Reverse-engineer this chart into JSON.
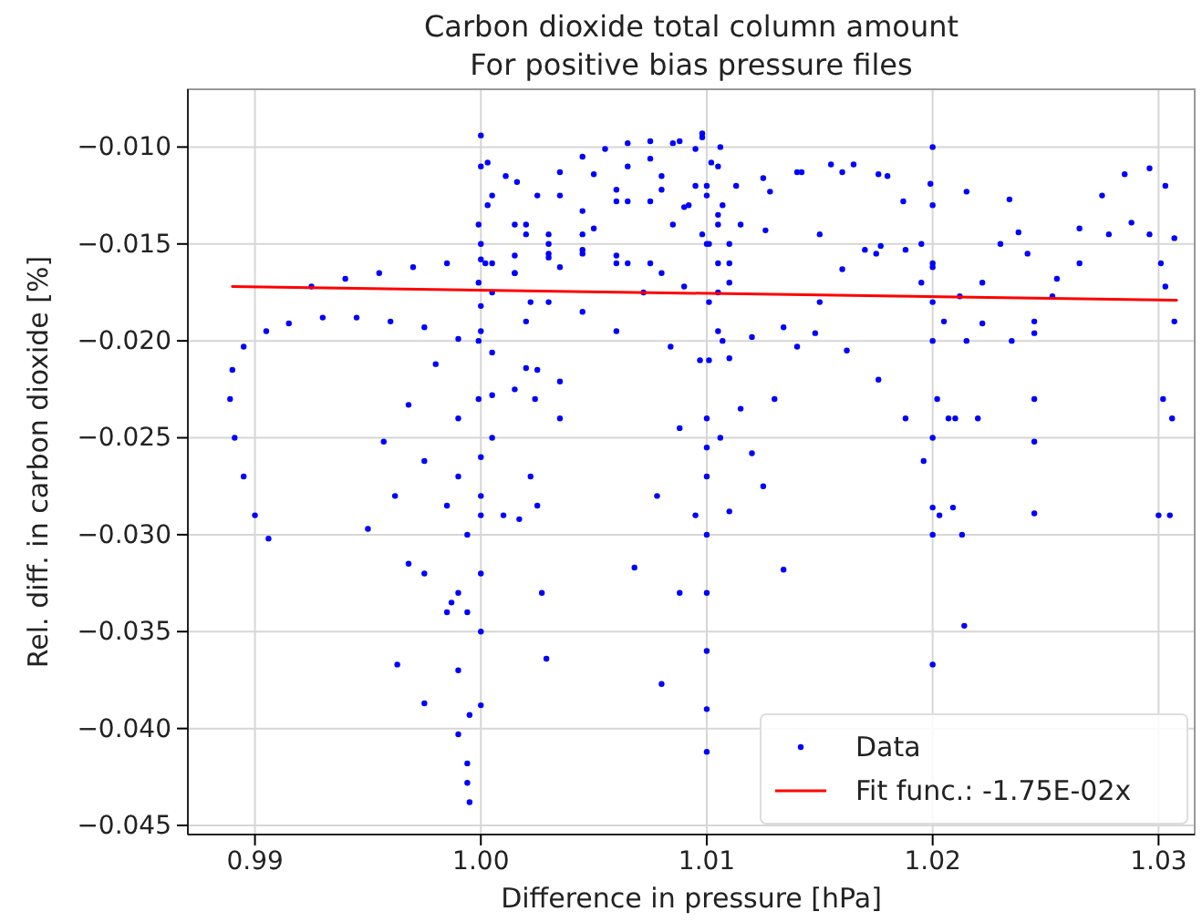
{
  "chart_data": {
    "type": "scatter",
    "title": "Carbon dioxide total column amount",
    "subtitle": "For positive bias pressure files",
    "xlabel": "Difference in pressure [hPa]",
    "ylabel": "Rel. diff. in carbon dioxide [%]",
    "xlim": [
      0.98703,
      1.0316
    ],
    "ylim": [
      -0.04547,
      -0.00702
    ],
    "xticks": [
      0.99,
      {
        "value": 1.0,
        "label": "1.00"
      },
      1.01,
      1.02,
      1.03
    ],
    "yticks": [
      {
        "value": -0.045,
        "label": "−0.045"
      },
      {
        "value": -0.04,
        "label": "−0.040"
      },
      {
        "value": -0.035,
        "label": "−0.035"
      },
      {
        "value": -0.03,
        "label": "−0.030"
      },
      {
        "value": -0.025,
        "label": "−0.025"
      },
      {
        "value": -0.02,
        "label": "−0.020"
      },
      {
        "value": -0.015,
        "label": "−0.015"
      },
      {
        "value": -0.01,
        "label": "−0.010"
      }
    ],
    "grid": true,
    "legend": "bottom right",
    "series": [
      {
        "name": "Data",
        "marker": "circle",
        "color": "#0000ff",
        "x": [
          0.9906,
          0.99,
          0.9895,
          0.9891,
          0.9889,
          0.989,
          0.9895,
          0.9905,
          0.9915,
          0.993,
          0.9945,
          0.996,
          0.9975,
          0.999,
          1.0005,
          1.002,
          1.0035,
          0.9925,
          0.994,
          0.9955,
          0.997,
          0.9985,
          1.0,
          1.0015,
          1.003,
          1.0,
          1.0,
          0.9999,
          0.9999,
          0.9999,
          0.9999,
          1.0,
          1.0,
          1.0,
          1.0,
          1.0,
          1.0003,
          1.0003,
          1.0002,
          0.9994,
          0.9994,
          0.9995,
          0.999,
          0.999,
          0.999,
          0.9994,
          0.9994,
          0.9995,
          1.0,
          1.0005,
          1.0011,
          1.0016,
          1.002,
          1.0022,
          1.0024,
          1.0025,
          1.0027,
          1.0029,
          0.9975,
          0.9985,
          1.0,
          1.0015,
          1.003,
          1.0045,
          1.006,
          1.0075,
          1.0088,
          1.0098,
          1.0105,
          1.011,
          0.9963,
          0.9975,
          0.999,
          1.0005,
          1.002,
          1.0035,
          1.005,
          1.0065,
          1.008,
          1.0095,
          1.0105,
          1.011,
          1.0005,
          1.0015,
          1.0025,
          1.0035,
          1.0045,
          1.0055,
          1.0065,
          1.0075,
          1.0085,
          1.0095,
          1.0102,
          1.0005,
          1.002,
          1.0035,
          1.005,
          1.0065,
          1.008,
          1.0092,
          1.01,
          1.0105,
          1.003,
          1.0045,
          1.006,
          1.0075,
          1.009,
          1.0105,
          1.0115,
          1.0125,
          1.0134,
          1.0,
          1.0015,
          1.003,
          1.0045,
          1.006,
          1.0072,
          1.0084,
          1.0,
          1.0015,
          1.003,
          1.0045,
          1.006,
          1.0075,
          1.009,
          1.0105,
          0.9968,
          0.9985,
          1.0005,
          1.0025,
          1.0045,
          1.0065,
          1.0085,
          1.01,
          0.9987,
          1.001,
          1.0035,
          1.006,
          1.008,
          1.0098,
          1.0068,
          1.0078,
          1.0088,
          1.0097,
          1.008,
          1.0088,
          1.0095,
          1.01,
          1.0098,
          1.01,
          1.0101,
          1.0101,
          1.0101,
          1.01,
          1.01,
          1.01,
          1.01,
          1.01,
          1.01,
          1.01,
          1.0106,
          1.0107,
          1.0107,
          1.0106,
          1.0113,
          1.0125,
          1.014,
          1.016,
          1.018,
          1.0199,
          1.0215,
          1.0234,
          1.0105,
          1.0115,
          1.0128,
          1.0142,
          1.0155,
          1.0165,
          1.0176,
          1.0187,
          1.0195,
          1.02,
          1.0202,
          1.0203,
          1.011,
          1.0126,
          1.015,
          1.0175,
          1.0195,
          1.0205,
          1.021,
          1.0213,
          1.0214,
          1.011,
          1.012,
          1.013,
          1.014,
          1.015,
          1.016,
          1.017,
          1.0177,
          1.0188,
          1.02,
          1.0212,
          1.0222,
          1.011,
          1.012,
          1.0134,
          1.0148,
          1.0162,
          1.0176,
          1.0188,
          1.0196,
          1.02,
          1.02,
          1.02,
          1.02,
          1.02,
          1.02,
          1.02,
          1.02,
          1.0207,
          1.0215,
          1.0222,
          1.023,
          1.0238,
          1.0242,
          1.0245,
          1.0245,
          1.0245,
          1.0245,
          1.0245,
          1.0255,
          1.0265,
          1.0275,
          1.0285,
          1.0296,
          1.0303,
          1.0307,
          1.0307,
          1.0306,
          1.0305,
          1.0209,
          1.022,
          1.0235,
          1.0253,
          1.0265,
          1.0278,
          1.0288,
          1.0296,
          1.0301,
          1.0303,
          1.0302,
          1.03,
          0.995,
          0.9962,
          0.9975,
          0.999,
          0.9957,
          0.9968,
          0.998,
          1.0017,
          1.0022
        ],
        "values": [
          -0.0302,
          -0.029,
          -0.027,
          -0.025,
          -0.023,
          -0.0215,
          -0.0203,
          -0.0195,
          -0.0191,
          -0.0188,
          -0.0188,
          -0.019,
          -0.0193,
          -0.0199,
          -0.0206,
          -0.0214,
          -0.0221,
          -0.0172,
          -0.0168,
          -0.0165,
          -0.0162,
          -0.016,
          -0.0158,
          -0.0156,
          -0.0155,
          -0.0094,
          -0.011,
          -0.014,
          -0.017,
          -0.02,
          -0.023,
          -0.026,
          -0.029,
          -0.032,
          -0.035,
          -0.0388,
          -0.0108,
          -0.013,
          -0.016,
          -0.03,
          -0.034,
          -0.0393,
          -0.033,
          -0.037,
          -0.0403,
          -0.0418,
          -0.0428,
          -0.0438,
          -0.015,
          -0.0125,
          -0.0115,
          -0.0118,
          -0.014,
          -0.018,
          -0.023,
          -0.0285,
          -0.033,
          -0.0364,
          -0.0387,
          -0.034,
          -0.028,
          -0.0225,
          -0.018,
          -0.0145,
          -0.0122,
          -0.0106,
          -0.0097,
          -0.0095,
          -0.011,
          -0.016,
          -0.0367,
          -0.032,
          -0.027,
          -0.0228,
          -0.019,
          -0.0162,
          -0.0142,
          -0.0128,
          -0.0122,
          -0.012,
          -0.0135,
          -0.017,
          -0.016,
          -0.014,
          -0.0125,
          -0.0113,
          -0.0105,
          -0.0101,
          -0.0098,
          -0.0097,
          -0.0098,
          -0.0101,
          -0.0108,
          -0.0175,
          -0.0145,
          -0.0125,
          -0.0114,
          -0.011,
          -0.0115,
          -0.013,
          -0.015,
          -0.0175,
          -0.015,
          -0.0153,
          -0.0156,
          -0.016,
          -0.0172,
          -0.0195,
          -0.0235,
          -0.0275,
          -0.0318,
          -0.0182,
          -0.0165,
          -0.0157,
          -0.0155,
          -0.016,
          -0.0175,
          -0.0203,
          -0.0195,
          -0.0165,
          -0.0145,
          -0.0133,
          -0.0128,
          -0.0128,
          -0.0131,
          -0.014,
          -0.0315,
          -0.0285,
          -0.025,
          -0.0215,
          -0.0185,
          -0.016,
          -0.014,
          -0.0125,
          -0.0335,
          -0.029,
          -0.024,
          -0.0195,
          -0.0165,
          -0.0145,
          -0.0317,
          -0.028,
          -0.0245,
          -0.021,
          -0.0377,
          -0.033,
          -0.029,
          -0.0255,
          -0.0093,
          -0.012,
          -0.015,
          -0.018,
          -0.021,
          -0.024,
          -0.027,
          -0.03,
          -0.033,
          -0.036,
          -0.039,
          -0.0412,
          -0.01,
          -0.013,
          -0.02,
          -0.025,
          -0.012,
          -0.0116,
          -0.0113,
          -0.0113,
          -0.0115,
          -0.0119,
          -0.0123,
          -0.0127,
          -0.016,
          -0.014,
          -0.0123,
          -0.0113,
          -0.0109,
          -0.0109,
          -0.0114,
          -0.0128,
          -0.015,
          -0.018,
          -0.023,
          -0.029,
          -0.015,
          -0.0143,
          -0.0145,
          -0.0155,
          -0.017,
          -0.019,
          -0.024,
          -0.03,
          -0.0347,
          -0.0288,
          -0.0258,
          -0.023,
          -0.0203,
          -0.018,
          -0.0163,
          -0.0153,
          -0.0151,
          -0.0153,
          -0.0162,
          -0.0177,
          -0.0191,
          -0.0209,
          -0.0198,
          -0.0193,
          -0.0196,
          -0.0205,
          -0.022,
          -0.024,
          -0.0262,
          -0.0286,
          -0.01,
          -0.013,
          -0.016,
          -0.02,
          -0.025,
          -0.03,
          -0.0367,
          -0.024,
          -0.02,
          -0.017,
          -0.015,
          -0.0144,
          -0.0155,
          -0.019,
          -0.023,
          -0.0252,
          -0.0289,
          -0.0196,
          -0.0168,
          -0.0142,
          -0.0125,
          -0.0114,
          -0.0111,
          -0.012,
          -0.0147,
          -0.019,
          -0.024,
          -0.029,
          -0.0286,
          -0.024,
          -0.02,
          -0.0177,
          -0.016,
          -0.0145,
          -0.0139,
          -0.0145,
          -0.016,
          -0.0172,
          -0.023,
          -0.029,
          -0.0297,
          -0.028,
          -0.0262,
          -0.024,
          -0.0252,
          -0.0233,
          -0.0212,
          -0.0292,
          -0.027
        ]
      },
      {
        "name": "Fit func.: -1.75E-02x",
        "type": "line",
        "color": "#ff0000",
        "x": [
          0.989,
          1.0308
        ],
        "values": [
          -0.0172,
          -0.0179
        ]
      }
    ]
  }
}
